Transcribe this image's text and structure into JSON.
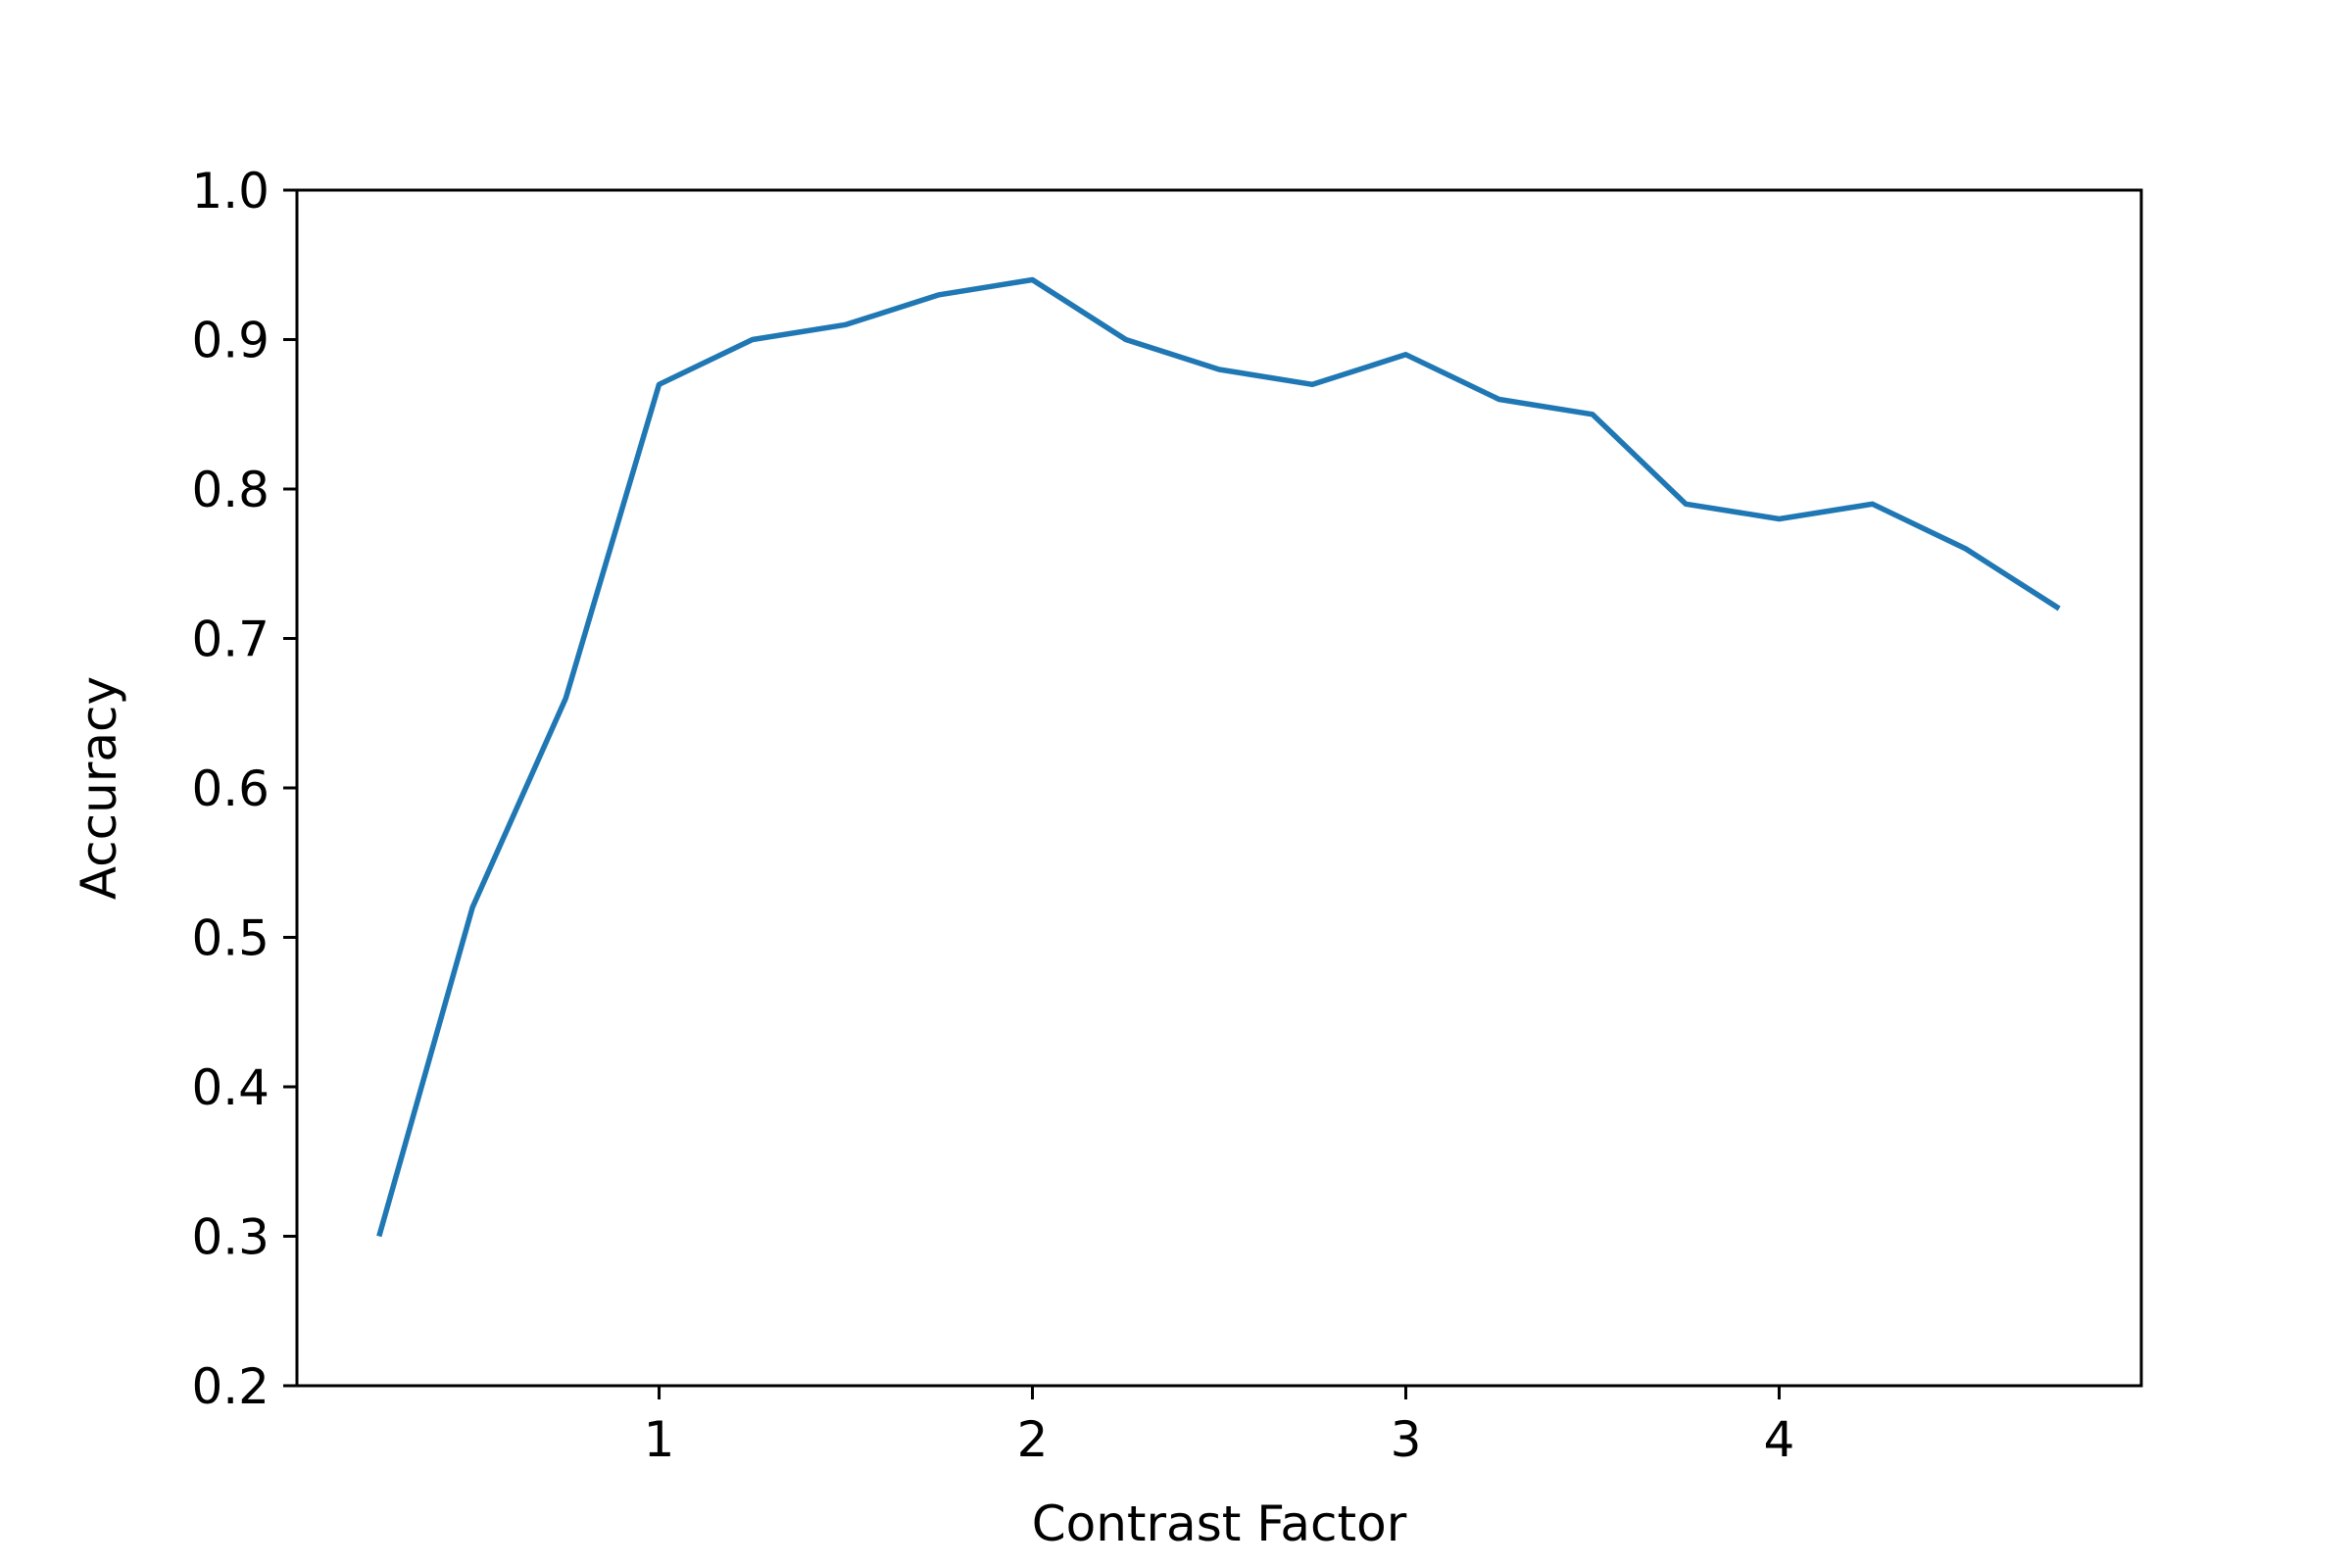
{
  "chart_data": {
    "type": "line",
    "title": "",
    "xlabel": "Contrast Factor",
    "ylabel": "Accuracy",
    "xlim": [
      0.03,
      4.97
    ],
    "ylim": [
      0.2,
      1.0
    ],
    "xticks": [
      1,
      2,
      3,
      4
    ],
    "xtick_labels": [
      "1",
      "2",
      "3",
      "4"
    ],
    "yticks": [
      0.2,
      0.3,
      0.4,
      0.5,
      0.6,
      0.7,
      0.8,
      0.9,
      1.0
    ],
    "ytick_labels": [
      "0.2",
      "0.3",
      "0.4",
      "0.5",
      "0.6",
      "0.7",
      "0.8",
      "0.9",
      "1.0"
    ],
    "grid": false,
    "series": [
      {
        "color": "#1f77b4",
        "x": [
          0.25,
          0.5,
          0.75,
          1.0,
          1.25,
          1.5,
          1.75,
          2.0,
          2.25,
          2.5,
          2.75,
          3.0,
          3.25,
          3.5,
          3.75,
          4.0,
          4.25,
          4.5,
          4.75
        ],
        "y": [
          0.3,
          0.52,
          0.66,
          0.87,
          0.9,
          0.91,
          0.93,
          0.94,
          0.9,
          0.88,
          0.87,
          0.89,
          0.86,
          0.85,
          0.79,
          0.78,
          0.79,
          0.76,
          0.72
        ]
      }
    ]
  }
}
